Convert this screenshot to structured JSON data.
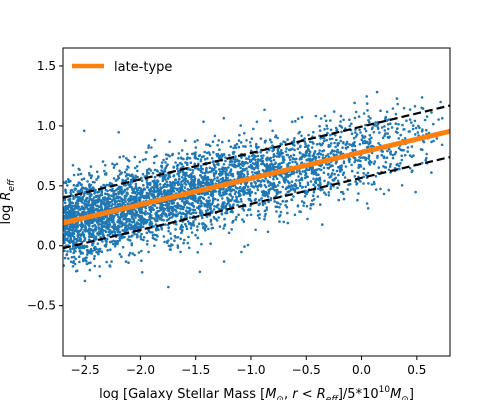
{
  "chart_data": {
    "type": "scatter",
    "xlabel": "log [Galaxy Stellar Mass [$M_\\odot$, $r < R_{eff}$]/5*10$^{10}$$M_\\odot$]",
    "ylabel": "log  R",
    "ylabel_sub": "eff",
    "xlim": [
      -2.7,
      0.8
    ],
    "ylim": [
      -0.92,
      1.65
    ],
    "xticks": [
      -2.5,
      -2.0,
      -1.5,
      -1.0,
      -0.5,
      0.0,
      0.5
    ],
    "xtick_labels": [
      "−2.5",
      "−2.0",
      "−1.5",
      "−1.0",
      "−0.5",
      "0.0",
      "0.5"
    ],
    "yticks": [
      -0.5,
      0.0,
      0.5,
      1.0,
      1.5
    ],
    "ytick_labels": [
      "−0.5",
      "0.0",
      "0.5",
      "1.0",
      "1.5"
    ],
    "grid": false,
    "legend_location": "upper-left",
    "colors": {
      "scatter": "#1f77b4",
      "fit": "#ff7f0e",
      "scatter_band": "#000000"
    },
    "series": [
      {
        "name": "late-type",
        "kind": "fit-line",
        "x": [
          -2.7,
          0.8
        ],
        "y": [
          0.19,
          0.955
        ],
        "style": "solid-thick"
      },
      {
        "kind": "upper-bound",
        "x": [
          -2.7,
          0.8
        ],
        "y": [
          0.4,
          1.17
        ],
        "style": "dashed"
      },
      {
        "kind": "lower-bound",
        "x": [
          -2.7,
          0.8
        ],
        "y": [
          -0.02,
          0.74
        ],
        "style": "dashed"
      },
      {
        "kind": "points",
        "distribution": {
          "x_range": [
            -2.7,
            0.78
          ],
          "relation_slope": 0.219,
          "relation_intercept": 0.78,
          "scatter_dex": 0.17,
          "count": 6000
        }
      }
    ]
  }
}
